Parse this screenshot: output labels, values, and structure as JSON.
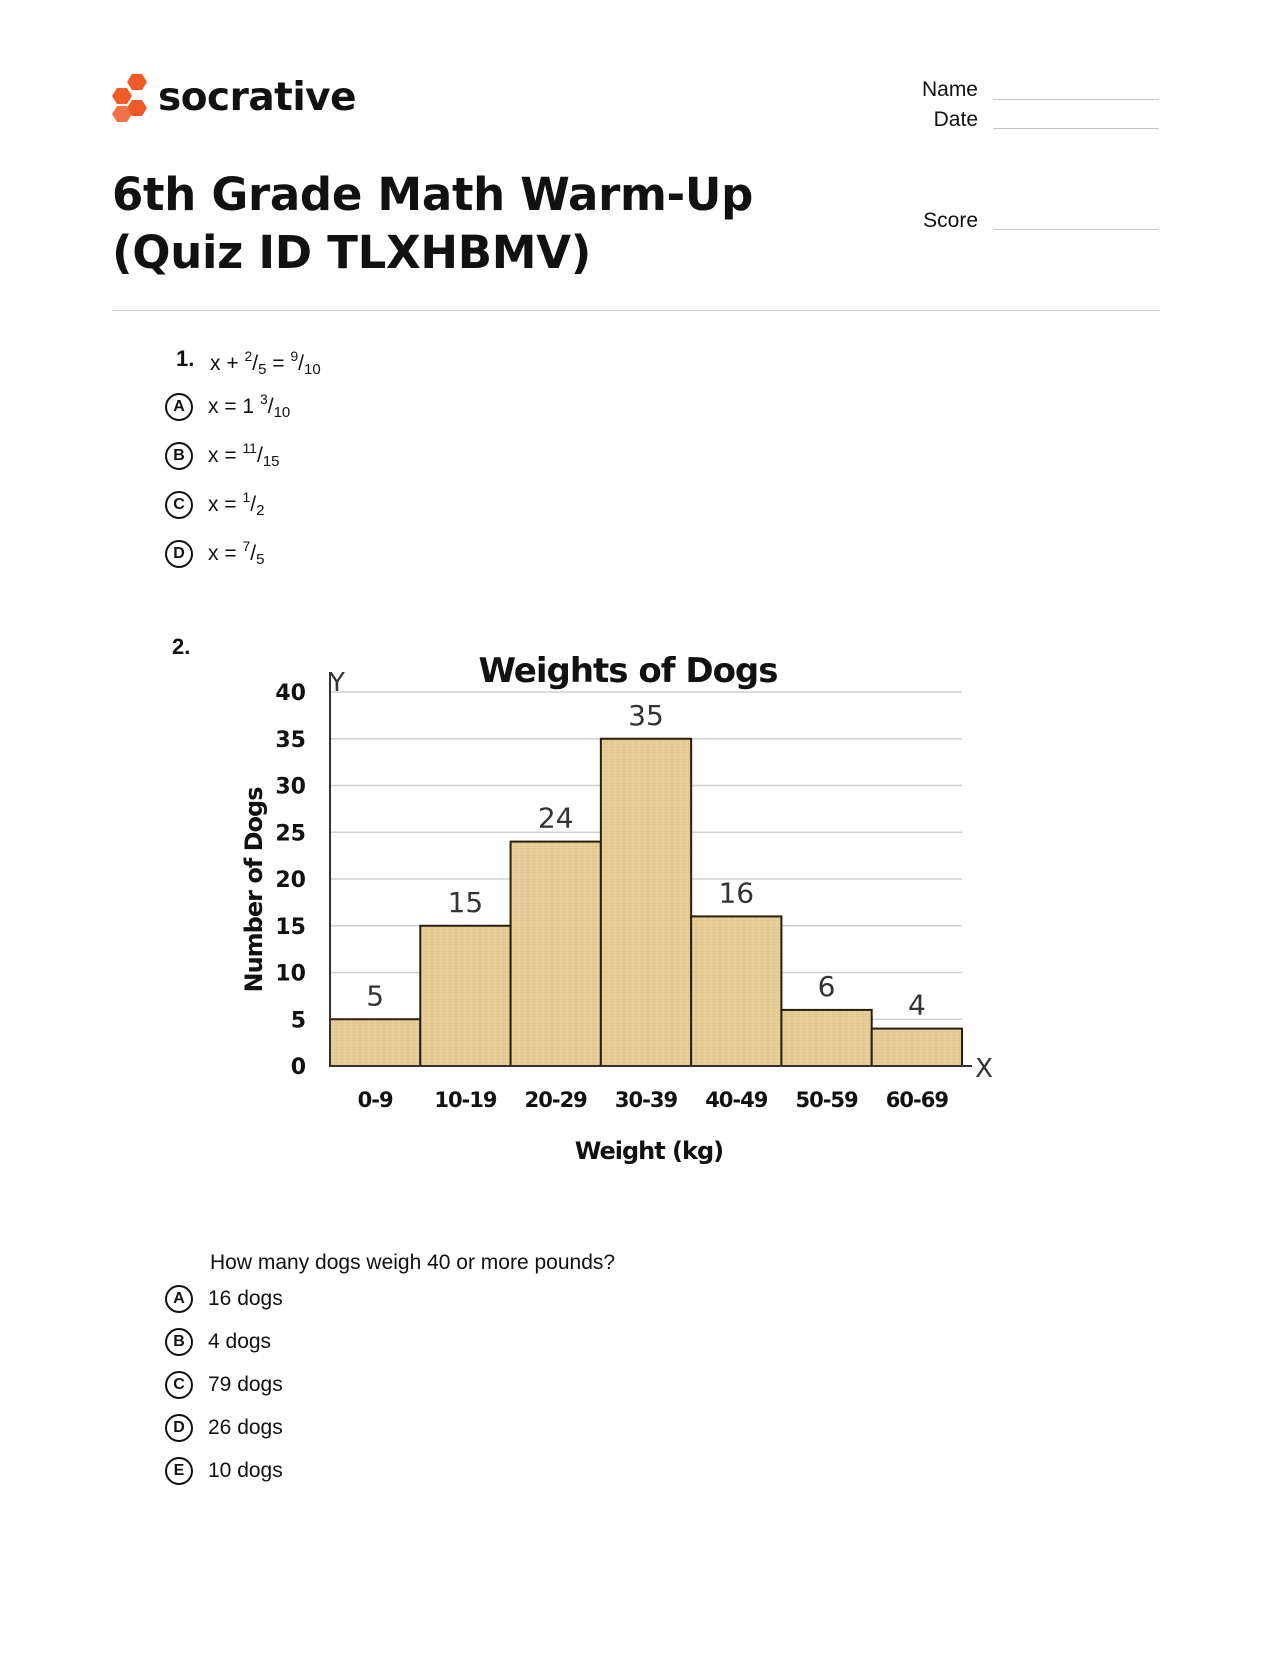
{
  "header": {
    "brand": "socrative",
    "name_label": "Name",
    "date_label": "Date",
    "score_label": "Score",
    "title": "6th Grade Math Warm-Up (Quiz ID TLXHBMV)",
    "brand_color": "#f05a28"
  },
  "q1": {
    "number": "1.",
    "question": {
      "pre": "x + ",
      "n1": "2",
      "d1": "5",
      "mid": " = ",
      "n2": "9",
      "d2": "10"
    },
    "options": [
      {
        "letter": "A",
        "pre": "x = 1 ",
        "num": "3",
        "den": "10"
      },
      {
        "letter": "B",
        "pre": "x = ",
        "num": "11",
        "den": "15"
      },
      {
        "letter": "C",
        "pre": "x = ",
        "num": "1",
        "den": "2"
      },
      {
        "letter": "D",
        "pre": "x = ",
        "num": "7",
        "den": "5"
      }
    ]
  },
  "q2": {
    "number": "2.",
    "question": "How many dogs weigh 40 or more pounds?",
    "options": [
      {
        "letter": "A",
        "text": "16 dogs"
      },
      {
        "letter": "B",
        "text": "4 dogs"
      },
      {
        "letter": "C",
        "text": "79 dogs"
      },
      {
        "letter": "D",
        "text": "26 dogs"
      },
      {
        "letter": "E",
        "text": "10 dogs"
      }
    ]
  },
  "chart_data": {
    "type": "bar",
    "title": "Weights of Dogs",
    "xlabel": "Weight (kg)",
    "ylabel": "Number of Dogs",
    "x_axis_letter": "X",
    "y_axis_letter": "Y",
    "categories": [
      "0-9",
      "10-19",
      "20-29",
      "30-39",
      "40-49",
      "50-59",
      "60-69"
    ],
    "values": [
      5,
      15,
      24,
      35,
      16,
      6,
      4
    ],
    "yticks": [
      0,
      5,
      10,
      15,
      20,
      25,
      30,
      35,
      40
    ],
    "ylim": [
      0,
      40
    ],
    "grid": true,
    "bar_color": "#e8cf9a",
    "bar_edge_color": "#2a1e10"
  }
}
